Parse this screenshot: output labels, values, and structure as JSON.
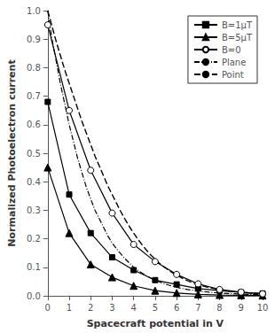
{
  "chart_data": {
    "type": "line",
    "xlabel": "Spacecraft potential in V",
    "ylabel": "Normalized Photoelectron current",
    "xlim": [
      0,
      10
    ],
    "ylim": [
      0,
      1.0
    ],
    "xticks": [
      0,
      1,
      2,
      3,
      4,
      5,
      6,
      7,
      8,
      9,
      10
    ],
    "yticks": [
      {
        "value": 0.0,
        "label": "0.0"
      },
      0.1,
      0.2,
      0.3,
      0.4,
      0.5,
      0.6,
      0.7,
      0.8,
      0.9,
      {
        "value": 1.0,
        "label": "1.0"
      }
    ],
    "grid": false,
    "legend": "upper right",
    "series": [
      {
        "name": "B=1μT",
        "color": "#000000",
        "marker": "square",
        "line_style": "solid",
        "x": [
          0,
          1,
          2,
          3,
          4,
          5,
          6,
          7,
          8,
          9,
          10
        ],
        "values": [
          0.68,
          0.355,
          0.22,
          0.135,
          0.09,
          0.055,
          0.04,
          0.025,
          0.018,
          0.012,
          0.008
        ]
      },
      {
        "name": "B=5μT",
        "color": "#000000",
        "marker": "triangle",
        "line_style": "solid",
        "x": [
          0,
          1,
          2,
          3,
          4,
          5,
          6,
          7,
          8,
          9,
          10
        ],
        "values": [
          0.45,
          0.22,
          0.11,
          0.065,
          0.035,
          0.018,
          0.01,
          0.005,
          0.003,
          0.002,
          0.001
        ]
      },
      {
        "name": "B=0",
        "color": "#000000",
        "marker": "open_circle",
        "line_style": "solid",
        "x": [
          0,
          1,
          2,
          3,
          4,
          5,
          6,
          7,
          8,
          9,
          10
        ],
        "values": [
          0.95,
          0.65,
          0.44,
          0.29,
          0.18,
          0.12,
          0.075,
          0.042,
          0.022,
          0.013,
          0.007
        ]
      },
      {
        "name": "Plane",
        "color": "#000000",
        "marker": "none",
        "line_style": "dashdot",
        "x": [
          0.0,
          0.2,
          0.4,
          0.6,
          0.8,
          1.0,
          1.2,
          1.4,
          1.6,
          1.8,
          2.0,
          2.2,
          2.4,
          2.6,
          2.8,
          3.0,
          3.2,
          3.4,
          3.6,
          3.8,
          4.0,
          4.2,
          4.4,
          4.6,
          4.8,
          5.0,
          5.2,
          5.4,
          5.6,
          5.8,
          6.0,
          6.5,
          7.0,
          7.5,
          8.0,
          8.5,
          9.0,
          9.5,
          10.0
        ],
        "values": [
          1.0,
          0.9,
          0.82,
          0.74,
          0.67,
          0.6,
          0.54,
          0.48,
          0.43,
          0.38,
          0.34,
          0.3,
          0.27,
          0.24,
          0.21,
          0.185,
          0.165,
          0.147,
          0.13,
          0.115,
          0.1,
          0.089,
          0.079,
          0.07,
          0.062,
          0.055,
          0.049,
          0.043,
          0.038,
          0.034,
          0.03,
          0.022,
          0.017,
          0.013,
          0.01,
          0.008,
          0.006,
          0.005,
          0.004
        ]
      },
      {
        "name": "Point",
        "color": "#000000",
        "marker": "none",
        "line_style": "dashed",
        "x": [
          0.0,
          0.2,
          0.4,
          0.6,
          0.8,
          1.0,
          1.2,
          1.4,
          1.6,
          1.8,
          2.0,
          2.2,
          2.4,
          2.6,
          2.8,
          3.0,
          3.2,
          3.4,
          3.6,
          3.8,
          4.0,
          4.2,
          4.4,
          4.6,
          4.8,
          5.0,
          5.2,
          5.4,
          5.6,
          5.8,
          6.0,
          6.5,
          7.0,
          7.5,
          8.0,
          8.5,
          9.0,
          9.5,
          10.0
        ],
        "values": [
          1.0,
          0.945,
          0.89,
          0.84,
          0.79,
          0.745,
          0.7,
          0.655,
          0.61,
          0.57,
          0.53,
          0.49,
          0.455,
          0.42,
          0.385,
          0.355,
          0.325,
          0.295,
          0.268,
          0.243,
          0.22,
          0.198,
          0.178,
          0.16,
          0.143,
          0.128,
          0.114,
          0.102,
          0.091,
          0.081,
          0.072,
          0.053,
          0.039,
          0.029,
          0.022,
          0.016,
          0.012,
          0.009,
          0.007
        ]
      }
    ]
  }
}
